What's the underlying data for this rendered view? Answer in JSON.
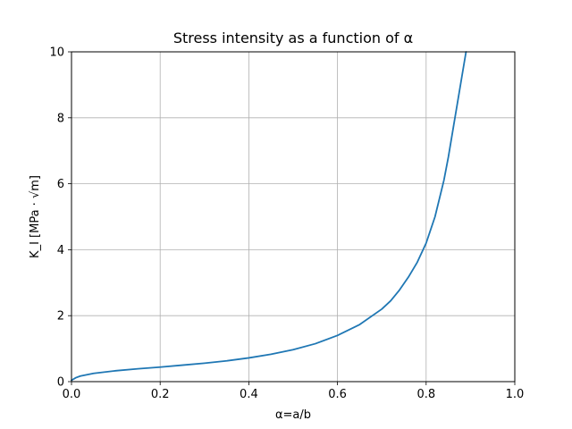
{
  "chart_data": {
    "type": "line",
    "title": "Stress intensity as a function of α",
    "xlabel": "α=a/b",
    "ylabel": "K_I [MPa · √m]",
    "xlim": [
      0.0,
      1.0
    ],
    "ylim": [
      0,
      10
    ],
    "grid": true,
    "x_ticks": [
      0.0,
      0.2,
      0.4,
      0.6,
      0.8,
      1.0
    ],
    "x_tick_labels": [
      "0.0",
      "0.2",
      "0.4",
      "0.6",
      "0.8",
      "1.0"
    ],
    "y_ticks": [
      0,
      2,
      4,
      6,
      8,
      10
    ],
    "y_tick_labels": [
      "0",
      "2",
      "4",
      "6",
      "8",
      "10"
    ],
    "series": [
      {
        "color": "#1f77b4",
        "x": [
          0.0,
          0.01,
          0.02,
          0.05,
          0.1,
          0.15,
          0.2,
          0.25,
          0.3,
          0.35,
          0.4,
          0.45,
          0.5,
          0.55,
          0.6,
          0.65,
          0.7,
          0.72,
          0.74,
          0.76,
          0.78,
          0.8,
          0.82,
          0.84,
          0.85,
          0.86,
          0.87,
          0.88,
          0.89
        ],
        "y": [
          0.04,
          0.12,
          0.17,
          0.25,
          0.33,
          0.39,
          0.44,
          0.5,
          0.56,
          0.63,
          0.72,
          0.83,
          0.97,
          1.15,
          1.4,
          1.73,
          2.2,
          2.45,
          2.78,
          3.17,
          3.62,
          4.2,
          5.0,
          6.1,
          6.8,
          7.6,
          8.4,
          9.2,
          10.0
        ]
      }
    ]
  }
}
